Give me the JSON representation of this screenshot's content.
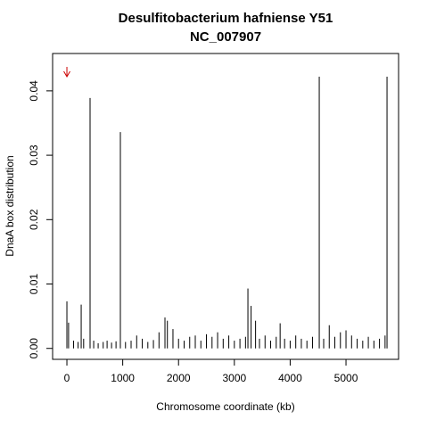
{
  "chart_data": {
    "type": "spike",
    "title": "Desulfitobacterium hafniense Y51",
    "subtitle": "NC_007907",
    "x_label": "Chromosome coordinate (kb)",
    "y_label": "DnaA box distribution",
    "color": "#000000",
    "x": [
      0,
      30,
      120,
      200,
      256,
      300,
      415,
      480,
      560,
      650,
      720,
      800,
      880,
      958,
      1050,
      1150,
      1250,
      1350,
      1450,
      1550,
      1650,
      1757,
      1800,
      1900,
      2000,
      2100,
      2200,
      2300,
      2400,
      2500,
      2600,
      2700,
      2800,
      2900,
      3000,
      3100,
      3200,
      3243,
      3300,
      3380,
      3450,
      3550,
      3650,
      3750,
      3820,
      3900,
      4000,
      4100,
      4200,
      4300,
      4400,
      4521,
      4600,
      4700,
      4800,
      4900,
      5000,
      5100,
      5200,
      5300,
      5400,
      5500,
      5600,
      5700,
      5735
    ],
    "values": [
      0.0073,
      0.004,
      0.0012,
      0.001,
      0.0068,
      0.0015,
      0.0389,
      0.0012,
      0.0008,
      0.001,
      0.0012,
      0.0009,
      0.0011,
      0.0336,
      0.001,
      0.0012,
      0.002,
      0.0015,
      0.001,
      0.0013,
      0.0025,
      0.0048,
      0.0043,
      0.003,
      0.0015,
      0.0012,
      0.0018,
      0.002,
      0.0012,
      0.0022,
      0.0018,
      0.0025,
      0.0015,
      0.002,
      0.0012,
      0.0015,
      0.0018,
      0.0093,
      0.0066,
      0.0043,
      0.0015,
      0.002,
      0.0012,
      0.0018,
      0.0039,
      0.0015,
      0.0012,
      0.002,
      0.0015,
      0.0012,
      0.0018,
      0.0422,
      0.0015,
      0.0036,
      0.0018,
      0.0025,
      0.0028,
      0.002,
      0.0015,
      0.0012,
      0.0018,
      0.0012,
      0.0015,
      0.002,
      0.0422
    ],
    "xlim": [
      -256,
      5942
    ],
    "ylim": [
      -0.0017,
      0.0458
    ],
    "xticks": [
      0,
      1000,
      2000,
      3000,
      4000,
      5000
    ],
    "yticks": [
      {
        "value": 0,
        "label": "0.00"
      },
      0.01,
      0.02,
      0.03,
      0.04
    ],
    "origin_arrow": {
      "x": 0,
      "color": "#cc0000"
    }
  }
}
